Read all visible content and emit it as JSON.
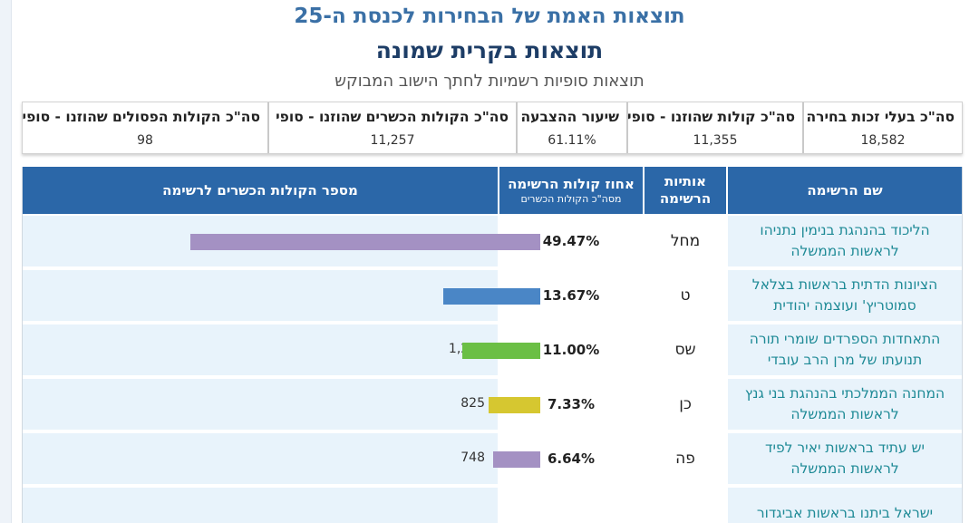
{
  "page": {
    "title": "תוצאות האמת של הבחירות לכנסת ה-25",
    "subtitle": "תוצאות בקרית שמונה",
    "description": "תוצאות סופיות רשמיות לחתך הישוב המבוקש"
  },
  "summary": [
    {
      "label": "סה\"כ בעלי זכות בחירה",
      "value": "18,582"
    },
    {
      "label": "סה\"כ קולות שהוזנו - סופי",
      "value": "11,355"
    },
    {
      "label": "שיעור ההצבעה",
      "value": "61.11%"
    },
    {
      "label": "סה\"כ הקולות הכשרים שהוזנו - סופי",
      "value": "11,257"
    },
    {
      "label": "סה\"כ הקולות הפסולים שהוזנו - סופי",
      "value": "98"
    }
  ],
  "table": {
    "headers": {
      "name": "שם הרשימה",
      "letters_line1": "אותיות",
      "letters_line2": "הרשימה",
      "pct_line1": "אחוז קולות הרשימה",
      "pct_line2": "מסה\"כ הקולות הכשרים",
      "votes": "מספר הקולות הכשרים לרשימה"
    },
    "max_votes": 5569,
    "rows": [
      {
        "name_line1": "הליכוד בהנהגת בנימין נתניהו",
        "name_line2": "לראשות הממשלה",
        "letters": "מחל",
        "pct": "49.47%",
        "votes": "5,569",
        "votes_num": 5569,
        "bar_color": "#a491c3"
      },
      {
        "name_line1": "הציונות הדתית בראשות בצלאל",
        "name_line2": "סמוטריץ' ועוצמה יהודית",
        "letters": "ט",
        "pct": "13.67%",
        "votes": "1,539",
        "votes_num": 1539,
        "bar_color": "#4a86c6"
      },
      {
        "name_line1": "התאחדות הספרדים שומרי תורה",
        "name_line2": "תנועתו של מרן הרב עובדי",
        "letters": "שס",
        "pct": "11.00%",
        "votes": "1,238",
        "votes_num": 1238,
        "bar_color": "#6bbf45"
      },
      {
        "name_line1": "המחנה הממלכתי בהנהגת בני גנץ",
        "name_line2": "לראשות הממשלה",
        "letters": "כן",
        "pct": "7.33%",
        "votes": "825",
        "votes_num": 825,
        "bar_color": "#d6c730"
      },
      {
        "name_line1": "יש עתיד בראשות יאיר לפיד",
        "name_line2": "לראשות הממשלה",
        "letters": "פה",
        "pct": "6.64%",
        "votes": "748",
        "votes_num": 748,
        "bar_color": "#a491c3"
      },
      {
        "name_line1": "ישראל ביתנו בראשות אביגדור",
        "name_line2": "",
        "letters": "",
        "pct": "",
        "votes": "",
        "votes_num": 0,
        "bar_color": "#a491c3"
      }
    ]
  }
}
